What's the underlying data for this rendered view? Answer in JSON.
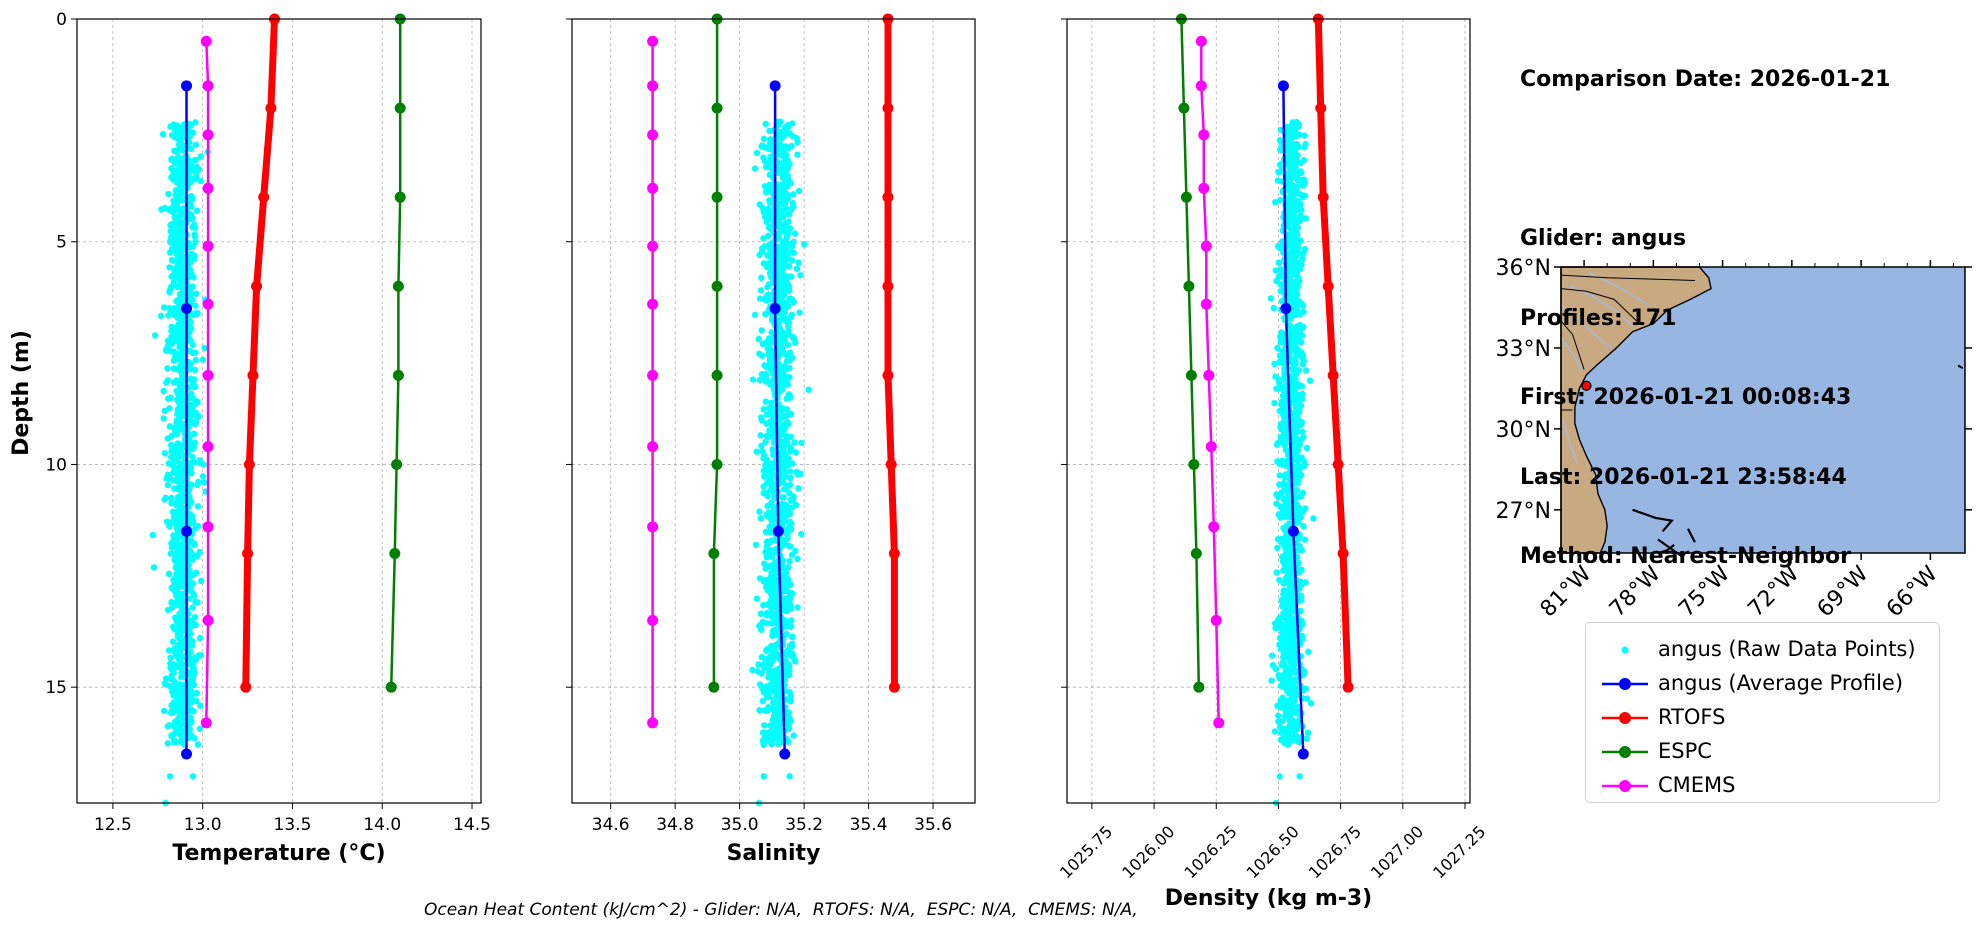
{
  "info": {
    "comparison_date": "Comparison Date: 2026-01-21",
    "glider": "Glider: angus",
    "profiles": "Profiles: 171",
    "first": "First: 2026-01-21 00:08:43",
    "last": "Last: 2026-01-21 23:58:44",
    "method": "Method: Nearest-Neighbor"
  },
  "footer": "Ocean Heat Content (kJ/cm^2) - Glider: N/A,  RTOFS: N/A,  ESPC: N/A,  CMEMS: N/A,",
  "colors": {
    "raw": "#00ffff",
    "glider_avg": "#0000ff",
    "rtofs": "#ff0000",
    "espc": "#008000",
    "cmems": "#ff00ff",
    "ocean": "#97b6e1",
    "land": "#c9a981"
  },
  "legend": [
    {
      "key": "raw",
      "label": "angus (Raw Data Points)",
      "style": "dot"
    },
    {
      "key": "glider_avg",
      "label": "angus (Average Profile)",
      "style": "line-marker"
    },
    {
      "key": "rtofs",
      "label": "RTOFS",
      "style": "line-marker"
    },
    {
      "key": "espc",
      "label": "ESPC",
      "style": "line-marker"
    },
    {
      "key": "cmems",
      "label": "CMEMS",
      "style": "line-marker"
    }
  ],
  "chart_data": [
    {
      "type": "line",
      "xlabel": "Temperature (°C)",
      "ylabel": "Depth (m)",
      "xlim": [
        12.3,
        14.55
      ],
      "ylim": [
        17.6,
        0
      ],
      "xticks": [
        12.5,
        13.0,
        13.5,
        14.0,
        14.5
      ],
      "xtick_labels": [
        "12.5",
        "13.0",
        "13.5",
        "14.0",
        "14.5"
      ],
      "yticks": [
        0,
        5,
        10,
        15
      ],
      "ytick_labels": [
        "0",
        "5",
        "10",
        "15"
      ],
      "grid": true,
      "raw_points": {
        "center": 12.89,
        "spread": 0.08,
        "depth_min": 2.3,
        "depth_max": 16.3,
        "count": 1300
      },
      "series": [
        {
          "key": "glider_avg",
          "name": "angus (Average Profile)",
          "values": [
            [
              12.91,
              1.5
            ],
            [
              12.91,
              6.5
            ],
            [
              12.91,
              11.5
            ],
            [
              12.91,
              16.5
            ]
          ]
        },
        {
          "key": "rtofs",
          "name": "RTOFS",
          "values": [
            [
              13.4,
              0
            ],
            [
              13.38,
              2
            ],
            [
              13.34,
              4
            ],
            [
              13.3,
              6
            ],
            [
              13.28,
              8
            ],
            [
              13.26,
              10
            ],
            [
              13.25,
              12
            ],
            [
              13.24,
              15
            ]
          ]
        },
        {
          "key": "espc",
          "name": "ESPC",
          "values": [
            [
              14.1,
              0
            ],
            [
              14.1,
              2
            ],
            [
              14.1,
              4
            ],
            [
              14.09,
              6
            ],
            [
              14.09,
              8
            ],
            [
              14.08,
              10
            ],
            [
              14.07,
              12
            ],
            [
              14.05,
              15
            ]
          ]
        },
        {
          "key": "cmems",
          "name": "CMEMS",
          "values": [
            [
              13.02,
              0.5
            ],
            [
              13.03,
              1.5
            ],
            [
              13.03,
              2.6
            ],
            [
              13.03,
              3.8
            ],
            [
              13.03,
              5.1
            ],
            [
              13.03,
              6.4
            ],
            [
              13.03,
              8.0
            ],
            [
              13.03,
              9.6
            ],
            [
              13.03,
              11.4
            ],
            [
              13.03,
              13.5
            ],
            [
              13.02,
              15.8
            ]
          ]
        }
      ]
    },
    {
      "type": "line",
      "xlabel": "Salinity",
      "xlim": [
        34.48,
        35.73
      ],
      "ylim": [
        17.6,
        0
      ],
      "xticks": [
        34.6,
        34.8,
        35.0,
        35.2,
        35.4,
        35.6
      ],
      "xtick_labels": [
        "34.6",
        "34.8",
        "35.0",
        "35.2",
        "35.4",
        "35.6"
      ],
      "yticks": [
        0,
        5,
        10,
        15
      ],
      "grid": true,
      "raw_points": {
        "center": 35.12,
        "spread": 0.05,
        "depth_min": 2.3,
        "depth_max": 16.3,
        "count": 1300
      },
      "series": [
        {
          "key": "glider_avg",
          "name": "angus (Average Profile)",
          "values": [
            [
              35.11,
              1.5
            ],
            [
              35.11,
              6.5
            ],
            [
              35.12,
              11.5
            ],
            [
              35.14,
              16.5
            ]
          ]
        },
        {
          "key": "rtofs",
          "name": "RTOFS",
          "values": [
            [
              35.46,
              0
            ],
            [
              35.46,
              2
            ],
            [
              35.46,
              4
            ],
            [
              35.46,
              6
            ],
            [
              35.46,
              8
            ],
            [
              35.47,
              10
            ],
            [
              35.48,
              12
            ],
            [
              35.48,
              15
            ]
          ]
        },
        {
          "key": "espc",
          "name": "ESPC",
          "values": [
            [
              34.93,
              0
            ],
            [
              34.93,
              2
            ],
            [
              34.93,
              4
            ],
            [
              34.93,
              6
            ],
            [
              34.93,
              8
            ],
            [
              34.93,
              10
            ],
            [
              34.92,
              12
            ],
            [
              34.92,
              15
            ]
          ]
        },
        {
          "key": "cmems",
          "name": "CMEMS",
          "values": [
            [
              34.73,
              0.5
            ],
            [
              34.73,
              1.5
            ],
            [
              34.73,
              2.6
            ],
            [
              34.73,
              3.8
            ],
            [
              34.73,
              5.1
            ],
            [
              34.73,
              6.4
            ],
            [
              34.73,
              8.0
            ],
            [
              34.73,
              9.6
            ],
            [
              34.73,
              11.4
            ],
            [
              34.73,
              13.5
            ],
            [
              34.73,
              15.8
            ]
          ]
        }
      ]
    },
    {
      "type": "line",
      "xlabel": "Density (kg m-3)",
      "xlim": [
        1025.65,
        1027.27
      ],
      "ylim": [
        17.6,
        0
      ],
      "xticks": [
        1025.75,
        1026.0,
        1026.25,
        1026.5,
        1026.75,
        1027.0,
        1027.25
      ],
      "xtick_labels": [
        "1025.75",
        "1026.00",
        "1026.25",
        "1026.50",
        "1026.75",
        "1027.00",
        "1027.25"
      ],
      "yticks": [
        0,
        5,
        10,
        15
      ],
      "grid": true,
      "raw_points": {
        "center": 1026.55,
        "spread": 0.05,
        "depth_min": 2.3,
        "depth_max": 16.3,
        "count": 1300
      },
      "series": [
        {
          "key": "glider_avg",
          "name": "angus (Average Profile)",
          "values": [
            [
              1026.52,
              1.5
            ],
            [
              1026.53,
              6.5
            ],
            [
              1026.56,
              11.5
            ],
            [
              1026.6,
              16.5
            ]
          ]
        },
        {
          "key": "rtofs",
          "name": "RTOFS",
          "values": [
            [
              1026.66,
              0
            ],
            [
              1026.67,
              2
            ],
            [
              1026.68,
              4
            ],
            [
              1026.7,
              6
            ],
            [
              1026.72,
              8
            ],
            [
              1026.74,
              10
            ],
            [
              1026.76,
              12
            ],
            [
              1026.78,
              15
            ]
          ]
        },
        {
          "key": "espc",
          "name": "ESPC",
          "values": [
            [
              1026.11,
              0
            ],
            [
              1026.12,
              2
            ],
            [
              1026.13,
              4
            ],
            [
              1026.14,
              6
            ],
            [
              1026.15,
              8
            ],
            [
              1026.16,
              10
            ],
            [
              1026.17,
              12
            ],
            [
              1026.18,
              15
            ]
          ]
        },
        {
          "key": "cmems",
          "name": "CMEMS",
          "values": [
            [
              1026.19,
              0.5
            ],
            [
              1026.19,
              1.5
            ],
            [
              1026.2,
              2.6
            ],
            [
              1026.2,
              3.8
            ],
            [
              1026.21,
              5.1
            ],
            [
              1026.21,
              6.4
            ],
            [
              1026.22,
              8.0
            ],
            [
              1026.23,
              9.6
            ],
            [
              1026.24,
              11.4
            ],
            [
              1026.25,
              13.5
            ],
            [
              1026.26,
              15.8
            ]
          ]
        }
      ]
    }
  ],
  "map": {
    "lon_range": [
      -82.0,
      -64.5
    ],
    "lat_range": [
      25.4,
      36.0
    ],
    "lat_ticks": [
      36,
      33,
      30,
      27
    ],
    "lat_labels": [
      "36°N",
      "33°N",
      "30°N",
      "27°N"
    ],
    "lon_ticks": [
      -81,
      -78,
      -75,
      -72,
      -69,
      -66
    ],
    "lon_labels": [
      "81°W",
      "78°W",
      "75°W",
      "72°W",
      "69°W",
      "66°W"
    ],
    "glider_position": {
      "lon": -80.9,
      "lat": 31.6
    }
  }
}
